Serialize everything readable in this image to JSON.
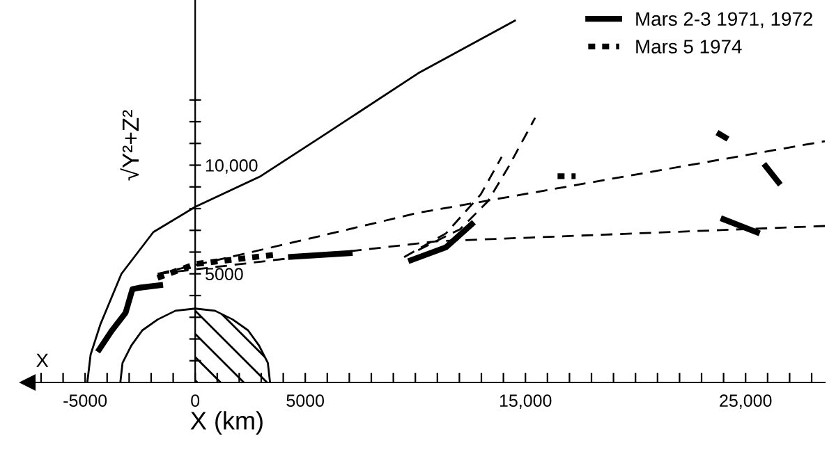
{
  "chart_data": {
    "type": "line",
    "xlabel": "X (km)",
    "ylabel": "√Y²+Z²",
    "annotations": [
      "X"
    ],
    "xlim": [
      -7600,
      28600
    ],
    "ylim": [
      0,
      17600
    ],
    "xticks": [
      {
        "value": -7000,
        "label": null
      },
      {
        "value": -6000,
        "label": null
      },
      {
        "value": -5000,
        "label": "-5000"
      },
      {
        "value": -4000,
        "label": null
      },
      {
        "value": -3000,
        "label": null
      },
      {
        "value": -2000,
        "label": null
      },
      {
        "value": -1000,
        "label": null
      },
      0,
      {
        "value": 1000,
        "label": null
      },
      {
        "value": 2000,
        "label": null
      },
      {
        "value": 3000,
        "label": null
      },
      {
        "value": 4000,
        "label": null
      },
      5000,
      {
        "value": 6000,
        "label": null
      },
      {
        "value": 7000,
        "label": null
      },
      {
        "value": 8000,
        "label": null
      },
      {
        "value": 9000,
        "label": null
      },
      {
        "value": 10000,
        "label": null
      },
      {
        "value": 11000,
        "label": null
      },
      {
        "value": 12000,
        "label": null
      },
      {
        "value": 13000,
        "label": null
      },
      {
        "value": 14000,
        "label": null
      },
      {
        "value": 15000,
        "label": "15,000"
      },
      {
        "value": 16000,
        "label": null
      },
      {
        "value": 17000,
        "label": null
      },
      {
        "value": 18000,
        "label": null
      },
      {
        "value": 19000,
        "label": null
      },
      {
        "value": 20000,
        "label": null
      },
      {
        "value": 21000,
        "label": null
      },
      {
        "value": 22000,
        "label": null
      },
      {
        "value": 23000,
        "label": null
      },
      {
        "value": 24000,
        "label": null
      },
      {
        "value": 25000,
        "label": "25,000"
      },
      {
        "value": 26000,
        "label": null
      },
      {
        "value": 27000,
        "label": null
      },
      {
        "value": 28000,
        "label": null
      }
    ],
    "yticks": [
      {
        "value": 1000,
        "label": null
      },
      {
        "value": 2000,
        "label": null
      },
      {
        "value": 3000,
        "label": null
      },
      {
        "value": 4000,
        "label": null
      },
      5000,
      {
        "value": 6000,
        "label": null
      },
      {
        "value": 7000,
        "label": null
      },
      {
        "value": 8000,
        "label": null
      },
      {
        "value": 9000,
        "label": null
      },
      {
        "value": 10000,
        "label": "10,000"
      },
      {
        "value": 11000,
        "label": null
      },
      {
        "value": 12000,
        "label": null
      },
      {
        "value": 13000,
        "label": null
      }
    ],
    "grid": false,
    "legend": "top right",
    "series": [
      {
        "color": "#000000",
        "line_style": "solid",
        "x": [
          -4900,
          -4750,
          -4300,
          -3350,
          -1900,
          0,
          2970,
          5890,
          10130,
          14560
        ],
        "values": [
          0,
          1280,
          2690,
          5000,
          6920,
          8080,
          9490,
          11410,
          14230,
          16670
        ]
      },
      {
        "color": "#000000",
        "line_style": "solid",
        "x": [
          3400,
          3300,
          2900,
          2400,
          1700,
          900,
          0,
          -900,
          -1700,
          -2400,
          -2900,
          -3300,
          -3400
        ],
        "values": [
          0,
          900,
          1700,
          2400,
          2900,
          3300,
          3400,
          3300,
          2900,
          2400,
          1700,
          900,
          0
        ]
      },
      {
        "type": "area",
        "color": "#000000",
        "x": [
          0,
          900,
          1700,
          2400,
          2900,
          3300,
          3400
        ],
        "values": [
          3400,
          3300,
          2900,
          2400,
          1700,
          900,
          0
        ]
      },
      {
        "color": "#000000",
        "line_style": "dashed",
        "x": [
          -1700,
          5100,
          10100,
          28600
        ],
        "values": [
          5000,
          6600,
          7800,
          11100
        ]
      },
      {
        "color": "#000000",
        "line_style": "dashed",
        "x": [
          -1700,
          5000,
          11000,
          28600
        ],
        "values": [
          5000,
          5800,
          6500,
          7200
        ]
      },
      {
        "color": "#000000",
        "line_style": "dashed",
        "x": [
          10130,
          12030,
          13290,
          14240,
          15440
        ],
        "values": [
          6090,
          7050,
          8330,
          9940,
          12180
        ]
      },
      {
        "color": "#000000",
        "line_style": "dashed",
        "x": [
          9490,
          11390,
          12970,
          13920
        ],
        "values": [
          5770,
          6860,
          8650,
          10380
        ]
      },
      {
        "name": "Mars 2-3 1971, 1972",
        "color": "#000000",
        "line_style": "solid",
        "x": [
          -4430,
          -3800,
          -3160,
          -2850,
          -2530,
          -1460,
          null,
          4220,
          7150,
          null,
          9680,
          11390,
          12660,
          null,
          23700,
          24200,
          null,
          25830,
          26580,
          null,
          23870,
          25640
        ],
        "values": [
          1410,
          2370,
          3210,
          4290,
          4360,
          4490,
          null,
          5770,
          5960,
          null,
          5580,
          6220,
          7370,
          null,
          11500,
          11200,
          null,
          10060,
          9100,
          null,
          7560,
          6860
        ]
      },
      {
        "name": "Mars 5 1974",
        "color": "#000000",
        "line_style": "dotted",
        "x": [
          -1710,
          0,
          3800,
          null,
          16460,
          17280
        ],
        "values": [
          4810,
          5450,
          5900,
          null,
          9490,
          9490
        ]
      }
    ]
  }
}
